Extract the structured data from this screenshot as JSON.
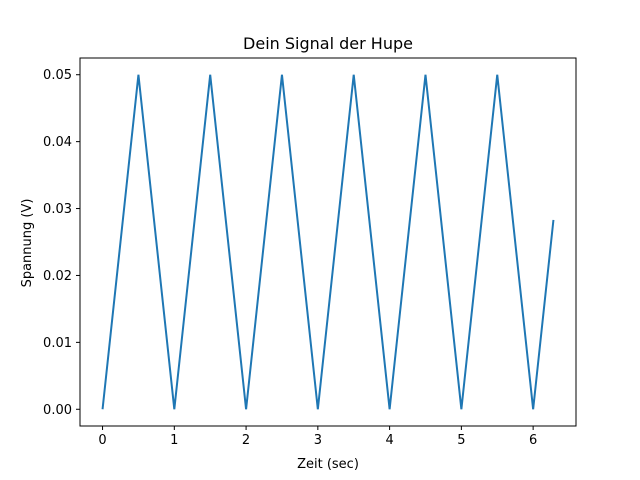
{
  "chart_data": {
    "type": "line",
    "title": "Dein Signal der Hupe",
    "xlabel": "Zeit (sec)",
    "ylabel": "Spannung (V)",
    "xlim": [
      -0.3142,
      6.5973
    ],
    "ylim": [
      -0.0025,
      0.0525
    ],
    "xticks": [
      0,
      1,
      2,
      3,
      4,
      5,
      6
    ],
    "xtick_labels": [
      "0",
      "1",
      "2",
      "3",
      "4",
      "5",
      "6"
    ],
    "yticks": [
      0.0,
      0.01,
      0.02,
      0.03,
      0.04,
      0.05
    ],
    "ytick_labels": [
      "0.00",
      "0.01",
      "0.02",
      "0.03",
      "0.04",
      "0.05"
    ],
    "grid": false,
    "series": [
      {
        "color": "#1f77b4",
        "x": [
          0,
          0.5,
          1,
          1.5,
          2,
          2.5,
          3,
          3.5,
          4,
          4.5,
          5,
          5.5,
          6,
          6.283
        ],
        "y": [
          0,
          0.05,
          0,
          0.05,
          0,
          0.05,
          0,
          0.05,
          0,
          0.05,
          0,
          0.05,
          0,
          0.0283
        ]
      }
    ]
  }
}
